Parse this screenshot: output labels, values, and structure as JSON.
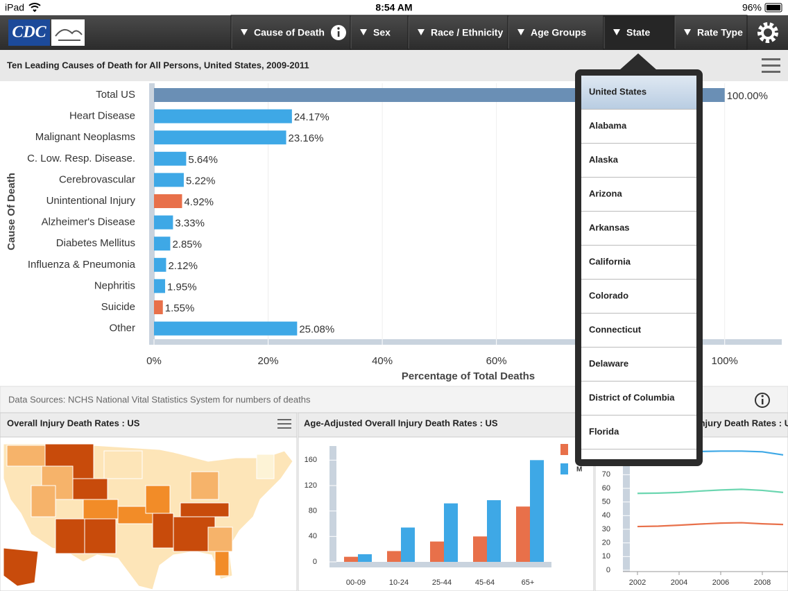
{
  "status_bar": {
    "device": "iPad",
    "time": "8:54 AM",
    "battery": "96%"
  },
  "nav": {
    "logo": "CDC",
    "menus": [
      "Cause of Death",
      "Sex",
      "Race / Ethnicity",
      "Age Groups",
      "State",
      "Rate Type"
    ]
  },
  "dropdown": {
    "selected": 0,
    "items": [
      "United States",
      "Alabama",
      "Alaska",
      "Arizona",
      "Arkansas",
      "California",
      "Colorado",
      "Connecticut",
      "Delaware",
      "District of Columbia",
      "Florida"
    ]
  },
  "sources": "Data Sources: NCHS National Vital Statistics System for numbers of deaths",
  "chart_data": [
    {
      "type": "bar",
      "orientation": "horizontal",
      "title": "Ten Leading Causes of Death for All Persons, United States, 2009-2011",
      "y_label": "Cause Of Death",
      "x_label": "Percentage of Total Deaths",
      "categories": [
        "Total US",
        "Heart Disease",
        "Malignant Neoplasms",
        "C. Low. Resp. Disease.",
        "Cerebrovascular",
        "Unintentional Injury",
        "Alzheimer's Disease",
        "Diabetes Mellitus",
        "Influenza & Pneumonia",
        "Nephritis",
        "Suicide",
        "Other"
      ],
      "values": [
        100,
        24.17,
        23.16,
        5.64,
        5.22,
        4.92,
        3.33,
        2.85,
        2.12,
        1.95,
        1.55,
        25.08
      ],
      "value_labels": [
        "100.00%",
        "24.17%",
        "23.16%",
        "5.64%",
        "5.22%",
        "4.92%",
        "3.33%",
        "2.85%",
        "2.12%",
        "1.95%",
        "1.55%",
        "25.08%"
      ],
      "colors": [
        "#6a8fb5",
        "#3ea8e6",
        "#3ea8e6",
        "#3ea8e6",
        "#3ea8e6",
        "#e8704a",
        "#3ea8e6",
        "#3ea8e6",
        "#3ea8e6",
        "#3ea8e6",
        "#e8704a",
        "#3ea8e6"
      ],
      "xlim": [
        0,
        110
      ],
      "xticks": [
        {
          "value": 0,
          "label": "0%"
        },
        {
          "value": 20,
          "label": "20%"
        },
        {
          "value": 40,
          "label": "40%"
        },
        {
          "value": 60,
          "label": "60%"
        },
        {
          "value": 80,
          "label": "80%"
        },
        {
          "value": 100,
          "label": "100%"
        }
      ],
      "grid": true
    },
    {
      "type": "map",
      "title": "Overall Injury Death Rates : US"
    },
    {
      "type": "bar",
      "title": "Age-Adjusted Overall Injury Death Rates : US",
      "categories": [
        "00-09",
        "10-24",
        "25-44",
        "45-64",
        "65+"
      ],
      "series": [
        {
          "color": "#e8704a",
          "values": [
            8,
            17,
            32,
            40,
            87
          ]
        },
        {
          "name": "M",
          "color": "#3ea8e6",
          "values": [
            12,
            54,
            92,
            97,
            160
          ]
        }
      ],
      "ylim": [
        0,
        180
      ],
      "yticks": [
        0,
        40,
        80,
        120,
        160
      ]
    },
    {
      "type": "line",
      "title": "Injury Death Rates : US",
      "x": [
        2002,
        2003,
        2004,
        2005,
        2006,
        2007,
        2008,
        2009
      ],
      "series": [
        {
          "color": "#3ea8e6",
          "values": [
            85.5,
            86,
            86.5,
            87,
            87.3,
            87.3,
            86.8,
            84.5
          ]
        },
        {
          "color": "#6bd6b0",
          "values": [
            56.3,
            56.5,
            57,
            58,
            58.8,
            59.3,
            58.5,
            57
          ]
        },
        {
          "color": "#e8704a",
          "values": [
            32,
            32.3,
            33,
            33.8,
            34.5,
            34.8,
            34,
            33.5
          ]
        }
      ],
      "xlim": [
        2001.5,
        2009.2
      ],
      "xticks": [
        2002,
        2004,
        2006,
        2008
      ],
      "ylim": [
        0,
        90
      ],
      "yticks": [
        0,
        10,
        20,
        30,
        40,
        50,
        60,
        70
      ]
    }
  ]
}
